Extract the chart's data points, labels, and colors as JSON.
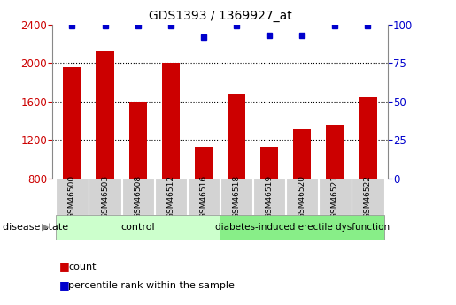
{
  "title": "GDS1393 / 1369927_at",
  "samples": [
    "GSM46500",
    "GSM46503",
    "GSM46508",
    "GSM46512",
    "GSM46516",
    "GSM46518",
    "GSM46519",
    "GSM46520",
    "GSM46521",
    "GSM46522"
  ],
  "counts": [
    1960,
    2120,
    1600,
    2000,
    1130,
    1680,
    1130,
    1310,
    1360,
    1640
  ],
  "percentiles": [
    99,
    99,
    99,
    99,
    92,
    99,
    93,
    93,
    99,
    99
  ],
  "group_labels": [
    "control",
    "diabetes-induced erectile dysfunction"
  ],
  "bar_color": "#cc0000",
  "dot_color": "#0000cc",
  "ylim_left": [
    800,
    2400
  ],
  "yticks_left": [
    800,
    1200,
    1600,
    2000,
    2400
  ],
  "ylim_right": [
    0,
    100
  ],
  "yticks_right": [
    0,
    25,
    50,
    75,
    100
  ],
  "label_count": "count",
  "label_percentile": "percentile rank within the sample",
  "disease_state_label": "disease state",
  "tick_bg_color": "#d3d3d3",
  "control_count": 5,
  "disease_count": 5,
  "control_color": "#ccffcc",
  "disease_color": "#88ee88"
}
